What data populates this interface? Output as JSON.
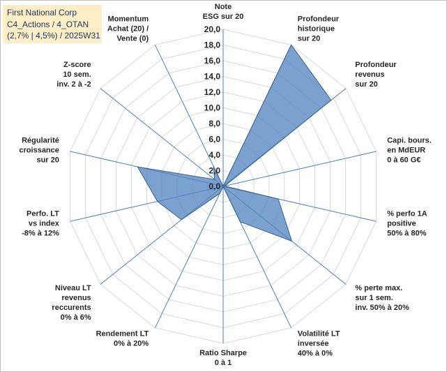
{
  "chart_data": {
    "type": "radar",
    "title_lines": [
      "First National Corp",
      "C4_Actions / 4_OTAN",
      "(2,7% | 4,5%) / 2025W31"
    ],
    "rmin": 0,
    "rmax": 20,
    "ticks": [
      "0,0",
      "2,0",
      "4,0",
      "6,0",
      "8,0",
      "10,0",
      "12,0",
      "14,0",
      "16,0",
      "18,0",
      "20,0"
    ],
    "tick_values": [
      0,
      2,
      4,
      6,
      8,
      10,
      12,
      14,
      16,
      18,
      20
    ],
    "axes": [
      {
        "label": [
          "Note",
          "ESG sur 20"
        ],
        "value": 0
      },
      {
        "label": [
          "Profondeur",
          "historique",
          "sur 20"
        ],
        "value": 20
      },
      {
        "label": [
          "Profondeur",
          "revenus",
          "sur 20"
        ],
        "value": 17.6
      },
      {
        "label": [
          "Capi. bours.",
          "en MdEUR",
          "0 à 60 G€"
        ],
        "value": 0.2
      },
      {
        "label": [
          "% perfo 1A",
          "positive",
          "50% à 80%"
        ],
        "value": 7.2
      },
      {
        "label": [
          "% perte max.",
          "sur 1 sem.",
          "inv. 50% à 20%"
        ],
        "value": 11.2
      },
      {
        "label": [
          "Volatilité LT",
          "inversée",
          "40% à 0%"
        ],
        "value": 5.0
      },
      {
        "label": [
          "Ratio Sharpe",
          "0 à 1"
        ],
        "value": 0
      },
      {
        "label": [
          "Rendement LT",
          "0% à 20%"
        ],
        "value": 1.0
      },
      {
        "label": [
          "Niveau LT",
          "revenus",
          "reccurents",
          "0% à 6%"
        ],
        "value": 6.8
      },
      {
        "label": [
          "Perfo. LT",
          "vs index",
          "-8% à 12%"
        ],
        "value": 8.6
      },
      {
        "label": [
          "Régularité",
          "croissance",
          "sur 20"
        ],
        "value": 11.2
      },
      {
        "label": [
          "Z-score",
          "10 sem.",
          "inv. 2 à -2"
        ],
        "value": 1.4
      },
      {
        "label": [
          "Momentum",
          "Achat (20) /",
          "Vente (0)"
        ],
        "value": 2.8
      }
    ],
    "series_color": "#4f81bd",
    "grid_color": "#d9d9d9",
    "spoke_color": "#4f81bd"
  }
}
